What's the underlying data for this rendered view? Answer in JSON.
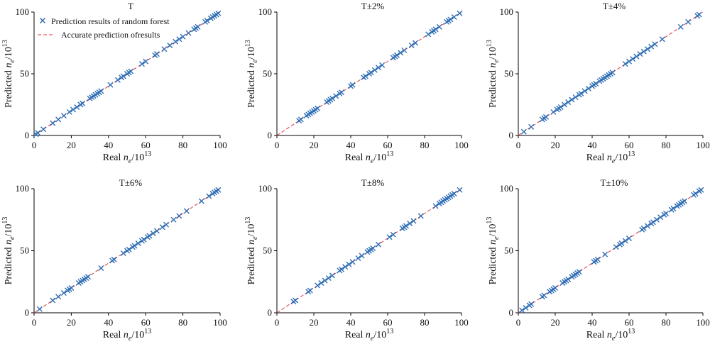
{
  "colors": {
    "marker": "#2E6DB4",
    "reference_line": "#E0343B",
    "axis": "#000000"
  },
  "legend": {
    "marker_label": "Prediction results of random forest",
    "line_label": "Accurate prediction ofresults",
    "placement": "top-left of first panel"
  },
  "chart_data": [
    {
      "type": "scatter",
      "title": "T",
      "xlabel": "Real ne/10^13",
      "ylabel": "Predicted ne/10^13",
      "xlim": [
        0,
        100
      ],
      "ylim": [
        0,
        100
      ],
      "xticks": [
        "0",
        "20",
        "40",
        "60",
        "80",
        "100"
      ],
      "yticks": [
        "0",
        "50",
        "100"
      ],
      "grid": false,
      "series": [
        {
          "name": "Prediction results of random forest",
          "marker": "x",
          "x": [
            1,
            2,
            5,
            10,
            13,
            16,
            19,
            21,
            23,
            25,
            26,
            30,
            31,
            32,
            33,
            34,
            35,
            36,
            41,
            45,
            47,
            48,
            50,
            51,
            52,
            58,
            60,
            65,
            66,
            70,
            73,
            76,
            78,
            80,
            83,
            86,
            87,
            88,
            92,
            93,
            95,
            96,
            97,
            98,
            99
          ],
          "y": [
            1,
            2,
            5,
            10,
            13,
            16,
            19,
            21,
            23,
            25,
            26,
            30,
            31,
            32,
            33,
            34,
            35,
            36,
            41,
            45,
            47,
            48,
            50,
            51,
            52,
            58,
            60,
            65,
            66,
            70,
            73,
            76,
            78,
            80,
            83,
            86,
            87,
            88,
            92,
            93,
            95,
            96,
            97,
            98,
            99
          ]
        },
        {
          "name": "Accurate prediction ofresults",
          "line": "dashed",
          "x": [
            0,
            100
          ],
          "y": [
            0,
            100
          ]
        }
      ]
    },
    {
      "type": "scatter",
      "title": "T±2%",
      "xlabel": "Real ne/10^13",
      "ylabel": "Predicted ne/10^13",
      "xlim": [
        0,
        100
      ],
      "ylim": [
        0,
        100
      ],
      "xticks": [
        "0",
        "20",
        "40",
        "60",
        "80",
        "100"
      ],
      "yticks": [
        "0",
        "50",
        "100"
      ],
      "grid": false,
      "series": [
        {
          "name": "Prediction results of random forest",
          "marker": "x",
          "x": [
            12,
            13,
            16,
            17,
            18,
            19,
            20,
            21,
            22,
            27,
            28,
            29,
            30,
            32,
            34,
            35,
            40,
            41,
            47,
            48,
            50,
            51,
            53,
            55,
            57,
            63,
            64,
            65,
            67,
            69,
            73,
            75,
            82,
            84,
            85,
            86,
            88,
            92,
            93,
            94,
            96,
            99
          ],
          "y": [
            12,
            13,
            16,
            17,
            18,
            19,
            20,
            21,
            22,
            27,
            28,
            29,
            30,
            32,
            34,
            35,
            40,
            41,
            47,
            48,
            50,
            51,
            53,
            55,
            57,
            63,
            64,
            65,
            67,
            69,
            73,
            75,
            82,
            84,
            85,
            86,
            88,
            92,
            93,
            94,
            96,
            99
          ]
        },
        {
          "name": "Accurate prediction ofresults",
          "line": "dashed",
          "x": [
            0,
            100
          ],
          "y": [
            0,
            100
          ]
        }
      ]
    },
    {
      "type": "scatter",
      "title": "T±4%",
      "xlabel": "Real ne/10^13",
      "ylabel": "Predicted ne/10^13",
      "xlim": [
        0,
        100
      ],
      "ylim": [
        0,
        100
      ],
      "xticks": [
        "0",
        "20",
        "40",
        "60",
        "80",
        "100"
      ],
      "yticks": [
        "0",
        "50",
        "100"
      ],
      "grid": false,
      "series": [
        {
          "name": "Prediction results of random forest",
          "marker": "x",
          "x": [
            3,
            7,
            13,
            14,
            15,
            19,
            21,
            22,
            23,
            25,
            27,
            29,
            31,
            33,
            34,
            36,
            38,
            40,
            41,
            42,
            44,
            45,
            46,
            47,
            48,
            49,
            50,
            51,
            58,
            60,
            62,
            64,
            66,
            68,
            70,
            72,
            74,
            78,
            88,
            92,
            97,
            98
          ],
          "y": [
            3,
            7,
            13,
            14,
            15,
            19,
            21,
            22,
            23,
            25,
            27,
            29,
            31,
            33,
            34,
            36,
            38,
            40,
            41,
            42,
            44,
            45,
            46,
            47,
            48,
            49,
            50,
            51,
            58,
            60,
            62,
            64,
            66,
            68,
            70,
            72,
            74,
            78,
            88,
            92,
            97,
            98
          ]
        },
        {
          "name": "Accurate prediction ofresults",
          "line": "dashed",
          "x": [
            0,
            100
          ],
          "y": [
            0,
            100
          ]
        }
      ]
    },
    {
      "type": "scatter",
      "title": "T±6%",
      "xlabel": "Real ne/10^13",
      "ylabel": "Predicted ne/10^13",
      "xlim": [
        0,
        100
      ],
      "ylim": [
        0,
        100
      ],
      "xticks": [
        "0",
        "20",
        "40",
        "60",
        "80",
        "100"
      ],
      "yticks": [
        "0",
        "50",
        "100"
      ],
      "grid": false,
      "series": [
        {
          "name": "Prediction results of random forest",
          "marker": "x",
          "x": [
            3,
            10,
            13,
            16,
            18,
            19,
            20,
            24,
            25,
            26,
            27,
            28,
            29,
            36,
            42,
            43,
            48,
            50,
            51,
            53,
            54,
            56,
            58,
            59,
            61,
            62,
            64,
            66,
            69,
            71,
            75,
            78,
            82,
            90,
            94,
            96,
            97,
            98,
            99
          ],
          "y": [
            3,
            10,
            13,
            16,
            18,
            19,
            20,
            24,
            25,
            26,
            27,
            28,
            29,
            36,
            42,
            43,
            48,
            50,
            51,
            53,
            54,
            56,
            58,
            59,
            61,
            62,
            64,
            66,
            69,
            71,
            75,
            78,
            82,
            90,
            94,
            96,
            97,
            98,
            99
          ]
        },
        {
          "name": "Accurate prediction ofresults",
          "line": "dashed",
          "x": [
            0,
            100
          ],
          "y": [
            0,
            100
          ]
        }
      ]
    },
    {
      "type": "scatter",
      "title": "T±8%",
      "xlabel": "Real ne/10^13",
      "ylabel": "Predicted ne/10^13",
      "xlim": [
        0,
        100
      ],
      "ylim": [
        0,
        100
      ],
      "xticks": [
        "0",
        "20",
        "40",
        "60",
        "80",
        "100"
      ],
      "yticks": [
        "0",
        "50",
        "100"
      ],
      "grid": false,
      "series": [
        {
          "name": "Prediction results of random forest",
          "marker": "x",
          "x": [
            9,
            10,
            17,
            18,
            22,
            24,
            26,
            28,
            30,
            34,
            35,
            37,
            39,
            41,
            44,
            46,
            49,
            50,
            51,
            52,
            55,
            61,
            63,
            68,
            69,
            70,
            72,
            74,
            78,
            86,
            88,
            89,
            90,
            91,
            92,
            93,
            94,
            95,
            96,
            99
          ],
          "y": [
            9,
            10,
            17,
            18,
            22,
            24,
            26,
            28,
            30,
            34,
            35,
            37,
            39,
            41,
            44,
            46,
            49,
            50,
            51,
            52,
            55,
            61,
            63,
            68,
            69,
            70,
            72,
            74,
            78,
            86,
            88,
            89,
            90,
            91,
            92,
            93,
            94,
            95,
            96,
            99
          ]
        },
        {
          "name": "Accurate prediction ofresults",
          "line": "dashed",
          "x": [
            0,
            100
          ],
          "y": [
            0,
            100
          ]
        }
      ]
    },
    {
      "type": "scatter",
      "title": "T±10%",
      "xlabel": "Real ne/10^13",
      "ylabel": "Predicted ne/10^13",
      "xlim": [
        0,
        100
      ],
      "ylim": [
        0,
        100
      ],
      "xticks": [
        "0",
        "20",
        "40",
        "60",
        "80",
        "100"
      ],
      "yticks": [
        "0",
        "50",
        "100"
      ],
      "grid": false,
      "series": [
        {
          "name": "Prediction results of random forest",
          "marker": "x",
          "x": [
            2,
            4,
            6,
            7,
            13,
            14,
            17,
            18,
            19,
            20,
            24,
            25,
            26,
            27,
            29,
            30,
            31,
            32,
            33,
            41,
            42,
            43,
            47,
            53,
            55,
            56,
            58,
            60,
            67,
            68,
            70,
            72,
            73,
            75,
            77,
            79,
            80,
            83,
            84,
            86,
            87,
            88,
            89,
            90,
            95,
            96,
            98,
            99
          ],
          "y": [
            2,
            4,
            6,
            7,
            13,
            14,
            17,
            18,
            19,
            20,
            24,
            25,
            26,
            27,
            29,
            30,
            31,
            32,
            33,
            41,
            42,
            43,
            47,
            53,
            55,
            56,
            58,
            60,
            67,
            68,
            70,
            72,
            73,
            75,
            77,
            79,
            80,
            83,
            84,
            86,
            87,
            88,
            89,
            90,
            95,
            96,
            98,
            99
          ]
        },
        {
          "name": "Accurate prediction ofresults",
          "line": "dashed",
          "x": [
            0,
            100
          ],
          "y": [
            0,
            100
          ]
        }
      ]
    }
  ]
}
